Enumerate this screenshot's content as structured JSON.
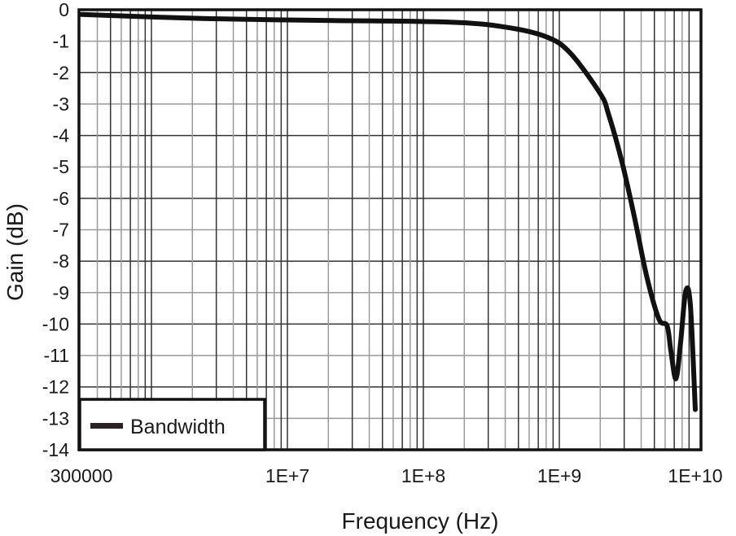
{
  "chart_data": {
    "type": "line",
    "title": "",
    "xlabel": "Frequency (Hz)",
    "ylabel": "Gain (dB)",
    "xscale": "log",
    "xlim": [
      300000,
      10000000000
    ],
    "ylim": [
      -14,
      0
    ],
    "grid": true,
    "legend_position": "lower-left",
    "x_tick_labels": [
      "300000",
      "1E+7",
      "1E+8",
      "1E+9",
      "1E+10"
    ],
    "y_tick_labels": [
      "0",
      "-1",
      "-2",
      "-3",
      "-4",
      "-5",
      "-6",
      "-7",
      "-8",
      "-9",
      "-10",
      "-11",
      "-12",
      "-13",
      "-14"
    ],
    "series": [
      {
        "name": "Bandwidth",
        "color": "#111111",
        "x": [
          300000,
          2400000,
          19000000,
          150000000,
          400000000,
          800000000,
          1200000000,
          2000000000,
          2300000000,
          2900000000,
          3600000000,
          4400000000,
          5400000000,
          6200000000,
          6600000000,
          7200000000,
          7800000000,
          8500000000,
          9200000000,
          10000000000
        ],
        "y": [
          -0.15,
          -0.28,
          -0.34,
          -0.39,
          -0.55,
          -0.86,
          -1.37,
          -2.67,
          -3.32,
          -4.87,
          -6.68,
          -8.5,
          -9.84,
          -10.05,
          -10.83,
          -11.74,
          -10.57,
          -8.96,
          -9.4,
          -12.72
        ]
      }
    ]
  },
  "legend": {
    "label": "Bandwidth"
  }
}
